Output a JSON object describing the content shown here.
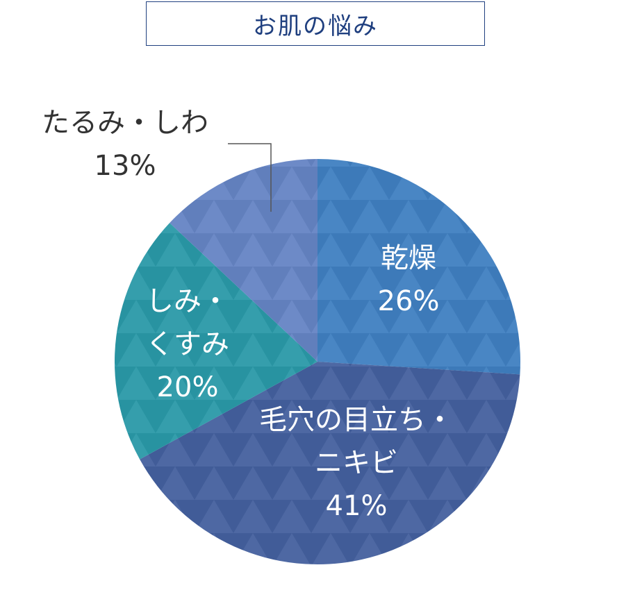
{
  "chart_data": {
    "type": "pie",
    "title": "お肌の悩み",
    "slices": [
      {
        "lines": [
          "乾燥"
        ],
        "percent_label": "26%",
        "value": 26,
        "color": "#3f7fc1"
      },
      {
        "lines": [
          "毛穴の目立ち・",
          "ニキビ"
        ],
        "percent_label": "41%",
        "value": 41,
        "color": "#44609e"
      },
      {
        "lines": [
          "しみ・",
          "くすみ"
        ],
        "percent_label": "20%",
        "value": 20,
        "color": "#2a99a8"
      },
      {
        "lines": [
          "たるみ・しわ"
        ],
        "percent_label": "13%",
        "value": 13,
        "color": "#6584c4"
      }
    ]
  }
}
